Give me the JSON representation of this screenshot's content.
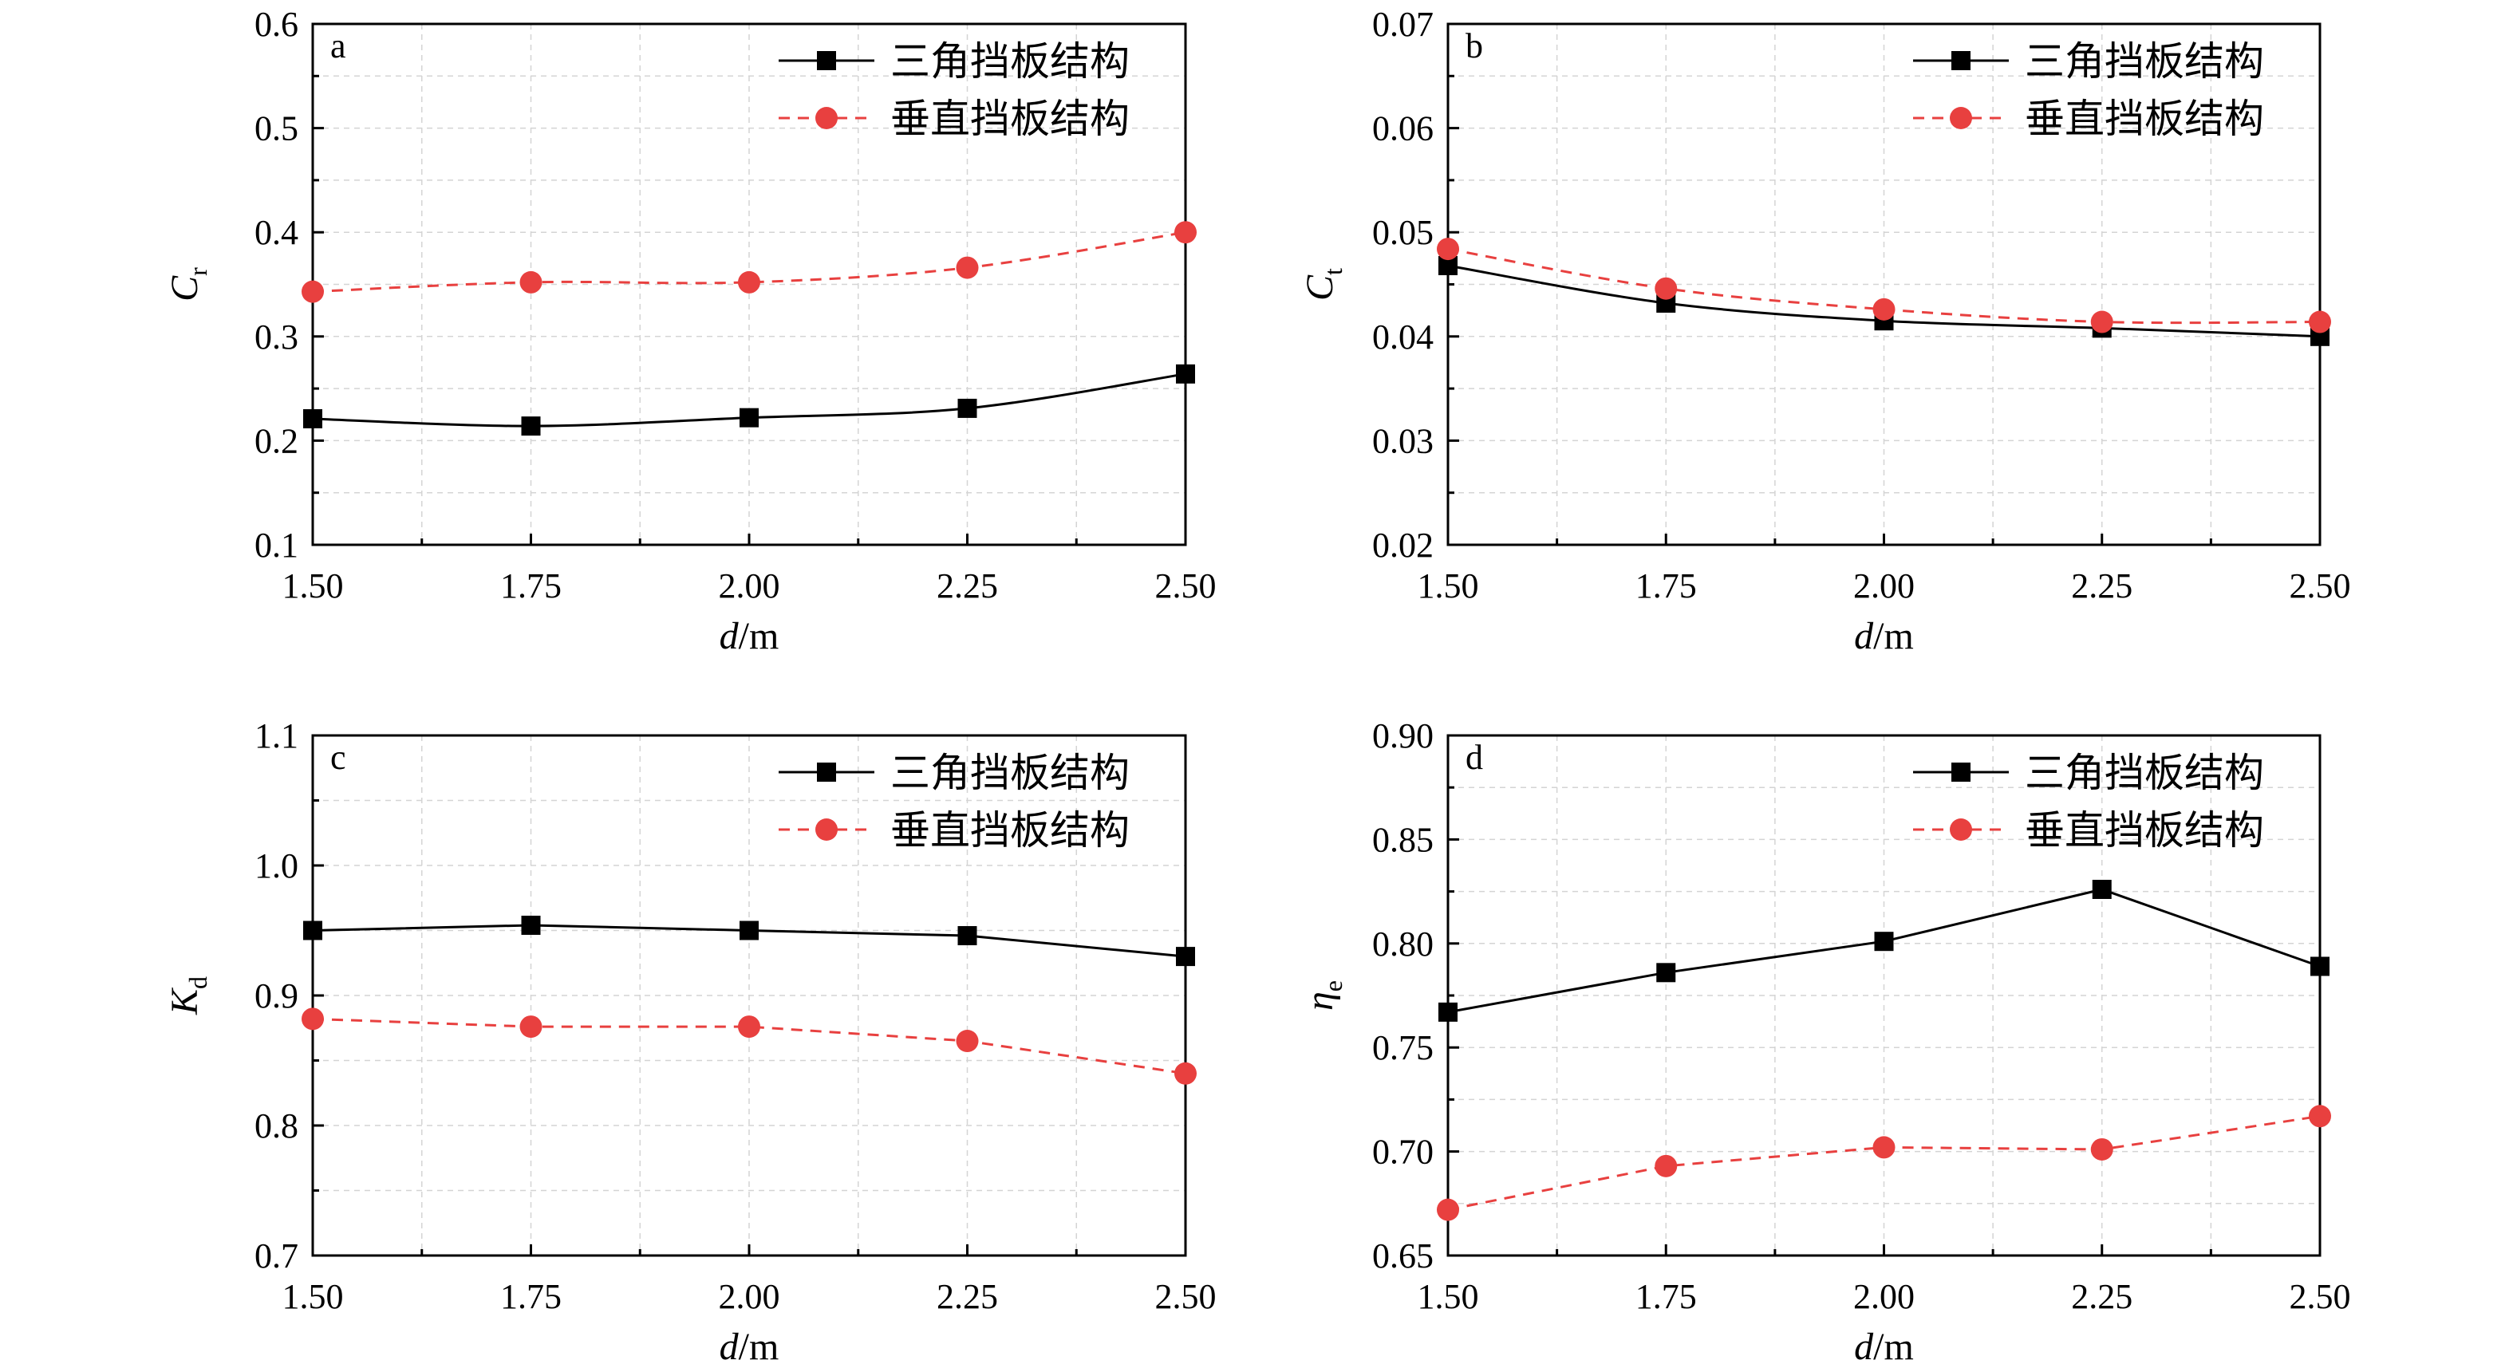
{
  "chart_data": [
    {
      "type": "line",
      "panel_label": "a",
      "x": [
        1.5,
        1.75,
        2.0,
        2.25,
        2.5
      ],
      "x_tick_labels": [
        "1.50",
        "1.75",
        "2.00",
        "2.25",
        "2.50"
      ],
      "xlim": [
        1.5,
        2.5
      ],
      "ylim": [
        0.1,
        0.6
      ],
      "y_ticks": [
        0.1,
        0.2,
        0.3,
        0.4,
        0.5,
        0.6
      ],
      "y_tick_labels": [
        "0.1",
        "0.2",
        "0.3",
        "0.4",
        "0.5",
        "0.6"
      ],
      "xlabel": {
        "main": "d",
        "unit": "/m"
      },
      "ylabel": {
        "main": "C",
        "sub": "r"
      },
      "grid": true,
      "legend_position": "top-right",
      "series": [
        {
          "name": "三角挡板结构",
          "values": [
            0.221,
            0.214,
            0.222,
            0.231,
            0.264
          ],
          "color": "#000000",
          "marker": "square",
          "line_style": "solid",
          "curve": "smooth"
        },
        {
          "name": "垂直挡板结构",
          "values": [
            0.343,
            0.352,
            0.352,
            0.366,
            0.4
          ],
          "color": "#e8403f",
          "marker": "circle",
          "line_style": "dashed",
          "curve": "smooth"
        }
      ]
    },
    {
      "type": "line",
      "panel_label": "b",
      "x": [
        1.5,
        1.75,
        2.0,
        2.25,
        2.5
      ],
      "x_tick_labels": [
        "1.50",
        "1.75",
        "2.00",
        "2.25",
        "2.50"
      ],
      "xlim": [
        1.5,
        2.5
      ],
      "ylim": [
        0.02,
        0.07
      ],
      "y_ticks": [
        0.02,
        0.03,
        0.04,
        0.05,
        0.06,
        0.07
      ],
      "y_tick_labels": [
        "0.02",
        "0.03",
        "0.04",
        "0.05",
        "0.06",
        "0.07"
      ],
      "xlabel": {
        "main": "d",
        "unit": "/m"
      },
      "ylabel": {
        "main": "C",
        "sub": "t"
      },
      "grid": true,
      "legend_position": "top-right",
      "series": [
        {
          "name": "三角挡板结构",
          "values": [
            0.0468,
            0.0432,
            0.0415,
            0.0408,
            0.04
          ],
          "color": "#000000",
          "marker": "square",
          "line_style": "solid",
          "curve": "smooth"
        },
        {
          "name": "垂直挡板结构",
          "values": [
            0.0484,
            0.0446,
            0.0426,
            0.0414,
            0.0414
          ],
          "color": "#e8403f",
          "marker": "circle",
          "line_style": "dashed",
          "curve": "smooth"
        }
      ]
    },
    {
      "type": "line",
      "panel_label": "c",
      "x": [
        1.5,
        1.75,
        2.0,
        2.25,
        2.5
      ],
      "x_tick_labels": [
        "1.50",
        "1.75",
        "2.00",
        "2.25",
        "2.50"
      ],
      "xlim": [
        1.5,
        2.5
      ],
      "ylim": [
        0.7,
        1.1
      ],
      "y_ticks": [
        0.7,
        0.8,
        0.9,
        1.0,
        1.1
      ],
      "y_tick_labels": [
        "0.7",
        "0.8",
        "0.9",
        "1.0",
        "1.1"
      ],
      "xlabel": {
        "main": "d",
        "unit": "/m"
      },
      "ylabel": {
        "main": "K",
        "sub": "d"
      },
      "grid": true,
      "legend_position": "top-right",
      "series": [
        {
          "name": "三角挡板结构",
          "values": [
            0.95,
            0.954,
            0.95,
            0.946,
            0.93
          ],
          "color": "#000000",
          "marker": "square",
          "line_style": "solid",
          "curve": "straight"
        },
        {
          "name": "垂直挡板结构",
          "values": [
            0.882,
            0.876,
            0.876,
            0.865,
            0.84
          ],
          "color": "#e8403f",
          "marker": "circle",
          "line_style": "dashed",
          "curve": "straight"
        }
      ]
    },
    {
      "type": "line",
      "panel_label": "d",
      "x": [
        1.5,
        1.75,
        2.0,
        2.25,
        2.5
      ],
      "x_tick_labels": [
        "1.50",
        "1.75",
        "2.00",
        "2.25",
        "2.50"
      ],
      "xlim": [
        1.5,
        2.5
      ],
      "ylim": [
        0.65,
        0.9
      ],
      "y_ticks": [
        0.65,
        0.7,
        0.75,
        0.8,
        0.85,
        0.9
      ],
      "y_tick_labels": [
        "0.65",
        "0.70",
        "0.75",
        "0.80",
        "0.85",
        "0.90"
      ],
      "xlabel": {
        "main": "d",
        "unit": "/m"
      },
      "ylabel": {
        "main": "η",
        "sub": "e"
      },
      "grid": true,
      "legend_position": "top-right",
      "series": [
        {
          "name": "三角挡板结构",
          "values": [
            0.767,
            0.786,
            0.801,
            0.826,
            0.789
          ],
          "color": "#000000",
          "marker": "square",
          "line_style": "solid",
          "curve": "straight"
        },
        {
          "name": "垂直挡板结构",
          "values": [
            0.672,
            0.693,
            0.702,
            0.701,
            0.717
          ],
          "color": "#e8403f",
          "marker": "circle",
          "line_style": "dashed",
          "curve": "straight"
        }
      ]
    }
  ]
}
